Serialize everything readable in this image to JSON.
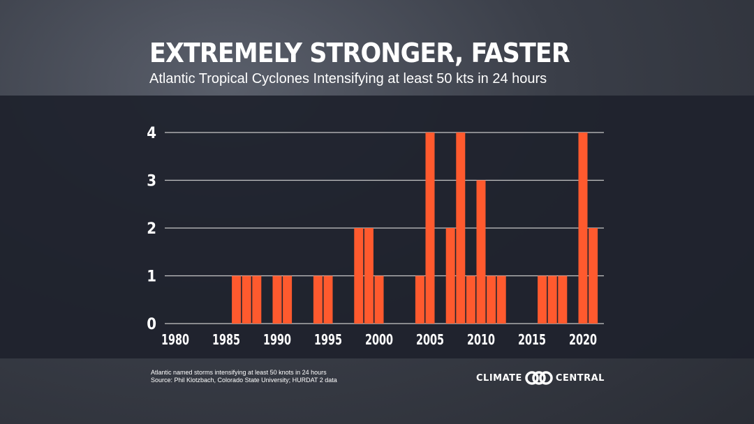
{
  "title": "EXTREMELY STRONGER, FASTER",
  "subtitle": "Atlantic Tropical Cyclones Intensifying at least 50 kts in 24 hours",
  "footnote": {
    "line1": "Atlantic named storms intensifying at least 50 knots in 24 hours",
    "line2": "Source: Phil Klotzbach, Colorado State University; HURDAT 2 data"
  },
  "logo": {
    "left": "CLIMATE",
    "right": "CENTRAL"
  },
  "colors": {
    "bar": "#ff5a2e",
    "band": "#1e222d",
    "grid": "#c8c8c8"
  },
  "chart_data": {
    "type": "bar",
    "title": "EXTREMELY STRONGER, FASTER",
    "subtitle": "Atlantic Tropical Cyclones Intensifying at least 50 kts in 24 hours",
    "xlim": [
      1980,
      2021
    ],
    "ylim": [
      0,
      4
    ],
    "yticks": [
      0,
      1,
      2,
      3,
      4
    ],
    "xticks": [
      1980,
      1985,
      1990,
      1995,
      2000,
      2005,
      2010,
      2015,
      2020
    ],
    "grid": true,
    "x": [
      1986,
      1987,
      1988,
      1990,
      1991,
      1994,
      1995,
      1998,
      1999,
      2000,
      2004,
      2005,
      2007,
      2008,
      2009,
      2010,
      2011,
      2012,
      2016,
      2017,
      2018,
      2020,
      2021
    ],
    "values": [
      1,
      1,
      1,
      1,
      1,
      1,
      1,
      2,
      2,
      1,
      1,
      4,
      2,
      4,
      1,
      3,
      1,
      1,
      1,
      1,
      1,
      4,
      2
    ]
  }
}
